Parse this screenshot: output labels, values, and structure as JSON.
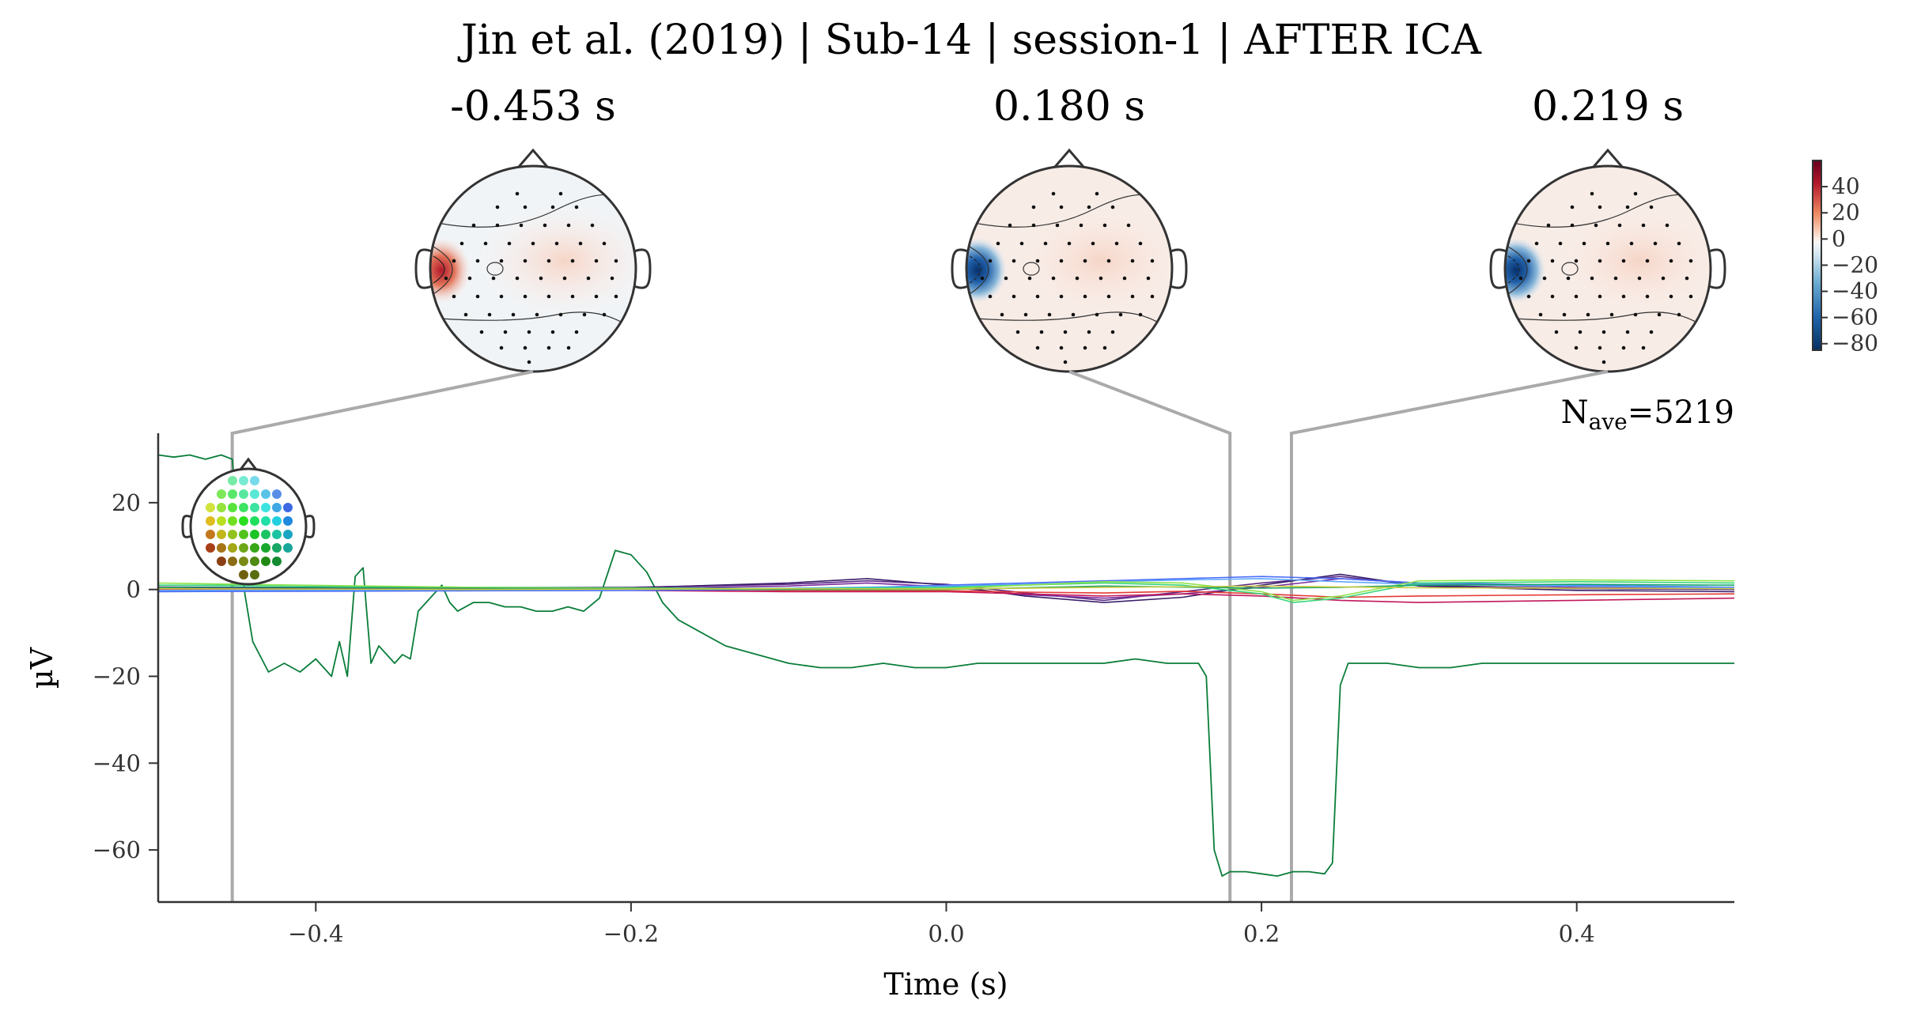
{
  "chart_data": {
    "type": "line",
    "title": "Jin et al. (2019) | Sub-14 | session-1 | AFTER ICA",
    "xlabel": "Time (s)",
    "ylabel": "µV",
    "xlim": [
      -0.5,
      0.5
    ],
    "ylim": [
      -72,
      36
    ],
    "xticks": [
      -0.4,
      -0.2,
      0.0,
      0.2,
      0.4
    ],
    "xtick_labels": [
      "−0.4",
      "−0.2",
      "0.0",
      "0.2",
      "0.4"
    ],
    "yticks": [
      20,
      0,
      -20,
      -40,
      -60
    ],
    "ytick_labels": [
      "20",
      "0",
      "−20",
      "−40",
      "−60"
    ],
    "nave_label": "N",
    "nave_sub": "ave",
    "nave_value": "=5219",
    "topomaps": [
      {
        "time": -0.453,
        "label": "-0.453 s",
        "polarity": "positive"
      },
      {
        "time": 0.18,
        "label": "0.180 s",
        "polarity": "negative"
      },
      {
        "time": 0.219,
        "label": "0.219 s",
        "polarity": "negative"
      }
    ],
    "colorbar": {
      "ticks": [
        40,
        20,
        0,
        -20,
        -40,
        -60,
        -80
      ],
      "tick_labels": [
        "40",
        "20",
        "0",
        "−20",
        "−40",
        "−60",
        "−80"
      ],
      "range": [
        -85,
        60
      ]
    },
    "series": [
      {
        "color": "#0a7d3a",
        "t": [
          -0.5,
          -0.49,
          -0.48,
          -0.47,
          -0.46,
          -0.453,
          -0.445,
          -0.44,
          -0.43,
          -0.42,
          -0.41,
          -0.4,
          -0.39,
          -0.385,
          -0.38,
          -0.375,
          -0.37,
          -0.365,
          -0.36,
          -0.35,
          -0.345,
          -0.34,
          -0.335,
          -0.33,
          -0.32,
          -0.315,
          -0.31,
          -0.3,
          -0.29,
          -0.28,
          -0.27,
          -0.26,
          -0.25,
          -0.24,
          -0.23,
          -0.22,
          -0.21,
          -0.2,
          -0.19,
          -0.18,
          -0.17,
          -0.16,
          -0.15,
          -0.14,
          -0.13,
          -0.12,
          -0.11,
          -0.1,
          -0.08,
          -0.06,
          -0.04,
          -0.02,
          0.0,
          0.02,
          0.04,
          0.06,
          0.08,
          0.1,
          0.12,
          0.14,
          0.16,
          0.165,
          0.17,
          0.175,
          0.18,
          0.19,
          0.2,
          0.21,
          0.22,
          0.23,
          0.24,
          0.245,
          0.25,
          0.255,
          0.26,
          0.28,
          0.3,
          0.32,
          0.34,
          0.36,
          0.38,
          0.4,
          0.42,
          0.44,
          0.46,
          0.48,
          0.5
        ],
        "v": [
          31,
          30.5,
          31,
          30,
          31,
          30,
          -1,
          -12,
          -19,
          -17,
          -19,
          -16,
          -20,
          -12,
          -20,
          3,
          5,
          -17,
          -13,
          -17,
          -15,
          -16,
          -5,
          -3,
          1,
          -3,
          -5,
          -3,
          -3,
          -4,
          -4,
          -5,
          -5,
          -4,
          -5,
          -2,
          9,
          8,
          4,
          -3,
          -7,
          -9,
          -11,
          -13,
          -14,
          -15,
          -16,
          -17,
          -18,
          -18,
          -17,
          -18,
          -18,
          -17,
          -17,
          -17,
          -17,
          -17,
          -16,
          -17,
          -17,
          -20,
          -60,
          -66,
          -65,
          -65,
          -65.5,
          -66,
          -65,
          -65,
          -65.5,
          -63,
          -22,
          -17,
          -17,
          -17,
          -18,
          -18,
          -17,
          -17,
          -17,
          -17,
          -17,
          -17,
          -17,
          -17,
          -17
        ]
      },
      {
        "color": "#5b2a86",
        "t": [
          -0.5,
          -0.2,
          -0.1,
          -0.05,
          0.0,
          0.05,
          0.1,
          0.15,
          0.2,
          0.25,
          0.3,
          0.4,
          0.5
        ],
        "v": [
          0.3,
          0.5,
          1.2,
          2.0,
          1.2,
          -0.8,
          -2.5,
          -0.5,
          1.5,
          3.0,
          1.0,
          0.2,
          0.0
        ]
      },
      {
        "color": "#7b2d9e",
        "t": [
          -0.5,
          -0.2,
          -0.1,
          -0.05,
          0.0,
          0.05,
          0.1,
          0.15,
          0.2,
          0.25,
          0.3,
          0.4,
          0.5
        ],
        "v": [
          0.6,
          0.2,
          0.8,
          1.5,
          0.6,
          -1.2,
          -2.0,
          -1.0,
          0.5,
          2.5,
          1.5,
          0.5,
          0.3
        ]
      },
      {
        "color": "#3a1f6b",
        "t": [
          -0.5,
          -0.2,
          -0.1,
          -0.05,
          0.0,
          0.05,
          0.1,
          0.15,
          0.2,
          0.25,
          0.3,
          0.4,
          0.5
        ],
        "v": [
          0.2,
          0.4,
          1.5,
          2.5,
          1.0,
          -1.5,
          -3.0,
          -1.8,
          1.0,
          3.5,
          0.8,
          -0.2,
          -0.5
        ]
      },
      {
        "color": "#c2185b",
        "t": [
          -0.5,
          -0.2,
          -0.1,
          0.0,
          0.05,
          0.1,
          0.15,
          0.2,
          0.25,
          0.3,
          0.4,
          0.5
        ],
        "v": [
          -0.3,
          -0.2,
          -0.5,
          -0.5,
          -1.0,
          -1.5,
          -1.0,
          -1.5,
          -2.5,
          -3.0,
          -2.5,
          -2.0
        ]
      },
      {
        "color": "#e53935",
        "t": [
          -0.5,
          -0.2,
          -0.1,
          0.0,
          0.05,
          0.1,
          0.15,
          0.2,
          0.25,
          0.3,
          0.4,
          0.5
        ],
        "v": [
          0.0,
          0.1,
          -0.2,
          -0.3,
          -0.6,
          -0.8,
          -0.4,
          -1.0,
          -1.8,
          -1.5,
          -1.2,
          -1.0
        ]
      },
      {
        "color": "#4a6cf7",
        "t": [
          -0.5,
          -0.2,
          -0.1,
          0.0,
          0.05,
          0.1,
          0.15,
          0.2,
          0.25,
          0.3,
          0.4,
          0.5
        ],
        "v": [
          -0.5,
          -0.2,
          0.0,
          1.0,
          1.5,
          2.0,
          2.5,
          3.0,
          2.5,
          1.5,
          1.0,
          0.5
        ]
      },
      {
        "color": "#5fa8ff",
        "t": [
          -0.5,
          -0.2,
          -0.1,
          0.0,
          0.05,
          0.1,
          0.15,
          0.2,
          0.25,
          0.3,
          0.4,
          0.5
        ],
        "v": [
          -0.2,
          0.0,
          0.3,
          0.8,
          1.2,
          1.8,
          2.2,
          2.5,
          1.8,
          1.2,
          0.8,
          0.4
        ]
      },
      {
        "color": "#37d67a",
        "t": [
          -0.5,
          -0.45,
          -0.3,
          -0.1,
          0.0,
          0.1,
          0.15,
          0.2,
          0.22,
          0.25,
          0.3,
          0.4,
          0.5
        ],
        "v": [
          1.0,
          1.0,
          0.5,
          0.2,
          0.5,
          1.5,
          1.0,
          -1.0,
          -3.0,
          -2.0,
          1.5,
          1.8,
          1.5
        ]
      },
      {
        "color": "#8ee34b",
        "t": [
          -0.5,
          -0.45,
          -0.3,
          -0.1,
          0.0,
          0.1,
          0.15,
          0.2,
          0.22,
          0.25,
          0.3,
          0.4,
          0.5
        ],
        "v": [
          1.5,
          1.2,
          0.5,
          0.0,
          0.2,
          1.8,
          1.5,
          -0.5,
          -2.5,
          -1.5,
          2.0,
          2.2,
          2.0
        ]
      },
      {
        "color": "#1aa66a",
        "t": [
          -0.5,
          -0.45,
          -0.3,
          -0.1,
          0.0,
          0.1,
          0.2,
          0.25,
          0.3,
          0.4,
          0.5
        ],
        "v": [
          0.5,
          0.6,
          0.3,
          0.0,
          0.0,
          0.8,
          0.3,
          0.5,
          1.0,
          1.2,
          1.0
        ]
      },
      {
        "color": "#c9c940",
        "t": [
          -0.5,
          -0.3,
          -0.1,
          0.0,
          0.1,
          0.2,
          0.3,
          0.4,
          0.5
        ],
        "v": [
          0.2,
          0.0,
          0.2,
          0.1,
          0.5,
          0.8,
          0.4,
          0.3,
          0.2
        ]
      }
    ]
  }
}
